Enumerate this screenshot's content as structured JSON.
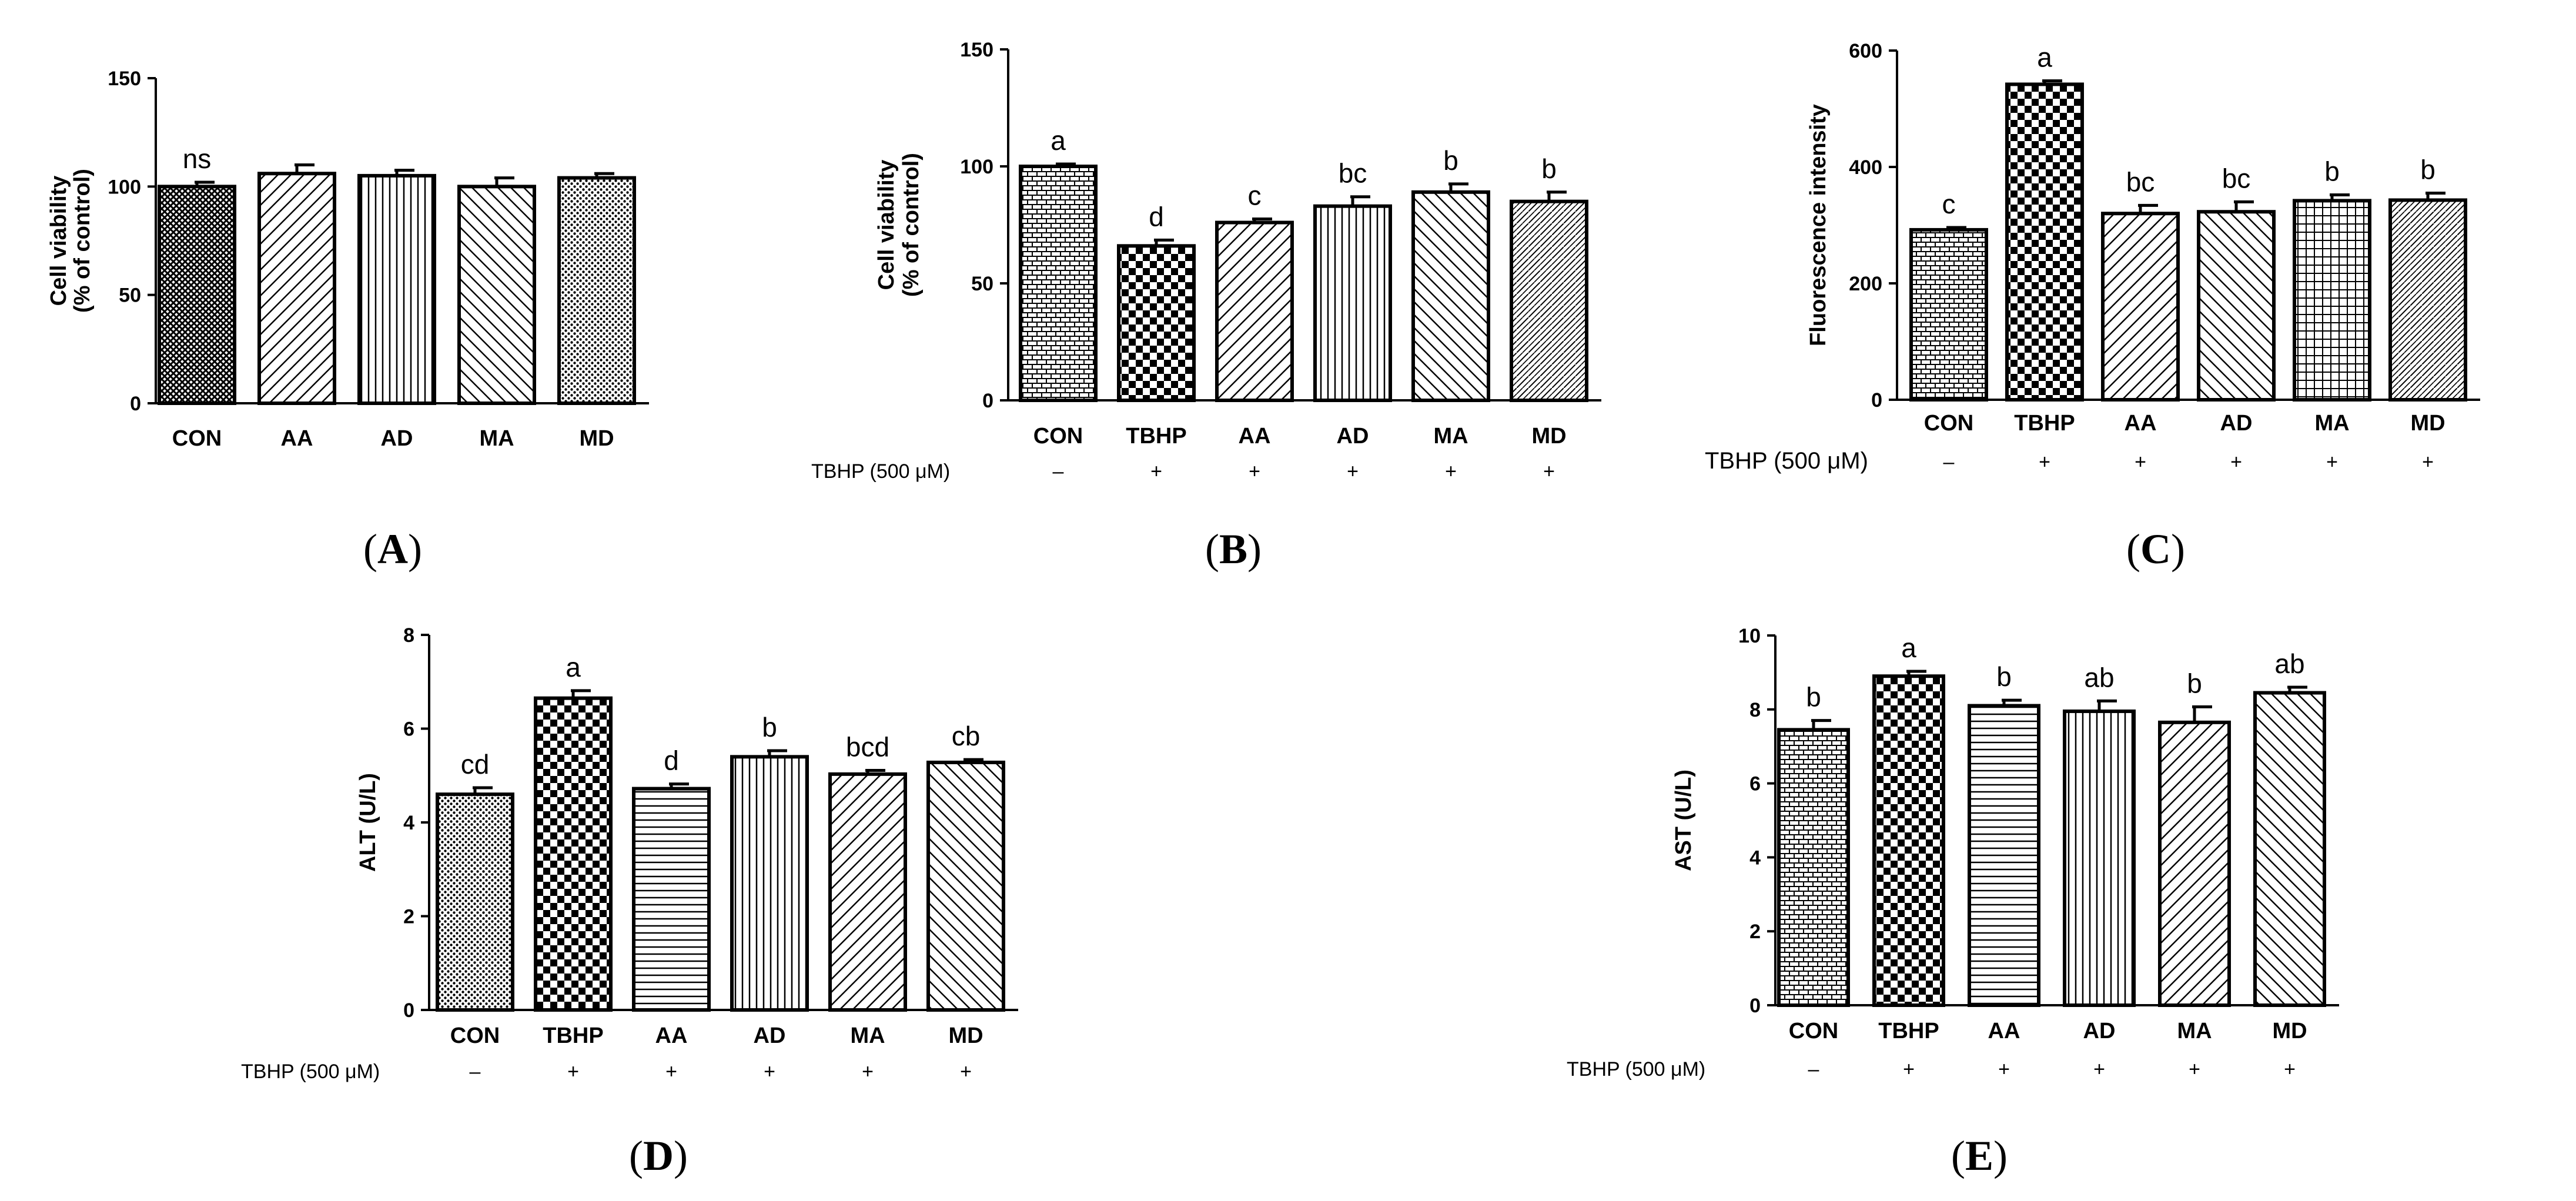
{
  "chart_data": [
    {
      "id": "A",
      "type": "bar",
      "panel_label": "A",
      "ylabel": "Cell viability",
      "ylabel2": "(% of control)",
      "ylim": [
        0,
        150
      ],
      "yticks": [
        0,
        50,
        100,
        150
      ],
      "categories": [
        "CON",
        "AA",
        "AD",
        "MA",
        "MD"
      ],
      "values": [
        100,
        106,
        105,
        100,
        104
      ],
      "errors": [
        2,
        4,
        2.5,
        4,
        2
      ],
      "significance": [
        "ns",
        "",
        "",
        "",
        ""
      ],
      "treatment": null
    },
    {
      "id": "B",
      "type": "bar",
      "panel_label": "B",
      "ylabel": "Cell viability",
      "ylabel2": "(% of control)",
      "ylim": [
        0,
        150
      ],
      "yticks": [
        0,
        50,
        100,
        150
      ],
      "categories": [
        "CON",
        "TBHP",
        "AA",
        "AD",
        "MA",
        "MD"
      ],
      "values": [
        100,
        66,
        76,
        83,
        89,
        85
      ],
      "errors": [
        1,
        2.5,
        1.5,
        4,
        3.5,
        4
      ],
      "significance": [
        "a",
        "d",
        "c",
        "bc",
        "b",
        "b"
      ],
      "treatment": {
        "label": "TBHP (500 μM)",
        "marks": [
          "–",
          "+",
          "+",
          "+",
          "+",
          "+"
        ]
      }
    },
    {
      "id": "C",
      "type": "bar",
      "panel_label": "C",
      "ylabel": "Fluorescence intensity",
      "ylabel2": "",
      "ylim": [
        0,
        600
      ],
      "yticks": [
        0,
        200,
        400,
        600
      ],
      "categories": [
        "CON",
        "TBHP",
        "AA",
        "AD",
        "MA",
        "MD"
      ],
      "values": [
        292,
        542,
        320,
        323,
        342,
        343
      ],
      "errors": [
        4,
        6,
        14,
        17,
        10,
        12
      ],
      "significance": [
        "c",
        "a",
        "bc",
        "bc",
        "b",
        "b"
      ],
      "treatment": {
        "label": "TBHP (500 μM)",
        "marks": [
          "–",
          "+",
          "+",
          "+",
          "+",
          "+"
        ]
      }
    },
    {
      "id": "D",
      "type": "bar",
      "panel_label": "D",
      "ylabel": "ALT (U/L)",
      "ylabel2": "",
      "ylim": [
        0,
        8
      ],
      "yticks": [
        0,
        2,
        4,
        6,
        8
      ],
      "categories": [
        "CON",
        "TBHP",
        "AA",
        "AD",
        "MA",
        "MD"
      ],
      "values": [
        4.6,
        6.65,
        4.72,
        5.4,
        5.03,
        5.28
      ],
      "errors": [
        0.14,
        0.16,
        0.1,
        0.13,
        0.08,
        0.06
      ],
      "significance": [
        "cd",
        "a",
        "d",
        "b",
        "bcd",
        "cb"
      ],
      "treatment": {
        "label": "TBHP (500 μM)",
        "marks": [
          "–",
          "+",
          "+",
          "+",
          "+",
          "+"
        ]
      }
    },
    {
      "id": "E",
      "type": "bar",
      "panel_label": "E",
      "ylabel": "AST (U/L)",
      "ylabel2": "",
      "ylim": [
        0,
        10
      ],
      "yticks": [
        0,
        2,
        4,
        6,
        8,
        10
      ],
      "categories": [
        "CON",
        "TBHP",
        "AA",
        "AD",
        "MA",
        "MD"
      ],
      "values": [
        7.45,
        8.9,
        8.1,
        7.95,
        7.65,
        8.45
      ],
      "errors": [
        0.25,
        0.13,
        0.15,
        0.28,
        0.42,
        0.15
      ],
      "significance": [
        "b",
        "a",
        "b",
        "ab",
        "b",
        "ab"
      ],
      "treatment": {
        "label": "TBHP (500 μM)",
        "marks": [
          "–",
          "+",
          "+",
          "+",
          "+",
          "+"
        ]
      }
    }
  ]
}
